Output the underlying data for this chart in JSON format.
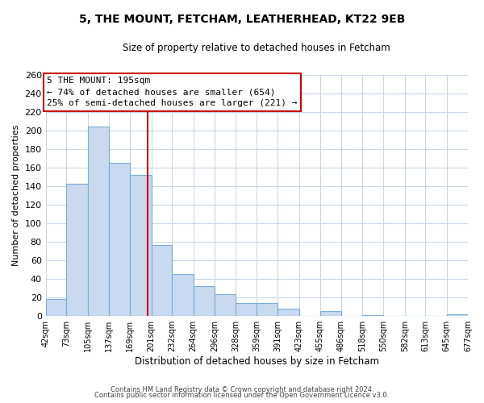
{
  "title": "5, THE MOUNT, FETCHAM, LEATHERHEAD, KT22 9EB",
  "subtitle": "Size of property relative to detached houses in Fetcham",
  "xlabel": "Distribution of detached houses by size in Fetcham",
  "ylabel": "Number of detached properties",
  "bar_color": "#c8d9f0",
  "bar_edge_color": "#7aaddb",
  "background_color": "#ffffff",
  "grid_color": "#c8d8e8",
  "bin_edges": [
    42,
    73,
    105,
    137,
    169,
    201,
    232,
    264,
    296,
    328,
    359,
    391,
    423,
    455,
    486,
    518,
    550,
    582,
    613,
    645,
    677
  ],
  "bin_labels": [
    "42sqm",
    "73sqm",
    "105sqm",
    "137sqm",
    "169sqm",
    "201sqm",
    "232sqm",
    "264sqm",
    "296sqm",
    "328sqm",
    "359sqm",
    "391sqm",
    "423sqm",
    "455sqm",
    "486sqm",
    "518sqm",
    "550sqm",
    "582sqm",
    "613sqm",
    "645sqm",
    "677sqm"
  ],
  "counts": [
    18,
    143,
    204,
    165,
    152,
    77,
    45,
    32,
    24,
    14,
    14,
    8,
    0,
    5,
    0,
    1,
    0,
    0,
    0,
    2
  ],
  "reference_line_x": 195,
  "reference_line_color": "#cc0000",
  "annotation_line1": "5 THE MOUNT: 195sqm",
  "annotation_line2": "← 74% of detached houses are smaller (654)",
  "annotation_line3": "25% of semi-detached houses are larger (221) →",
  "annotation_box_color": "#ffffff",
  "annotation_box_edge_color": "#cc0000",
  "ylim": [
    0,
    260
  ],
  "yticks": [
    0,
    20,
    40,
    60,
    80,
    100,
    120,
    140,
    160,
    180,
    200,
    220,
    240,
    260
  ],
  "footer_line1": "Contains HM Land Registry data © Crown copyright and database right 2024.",
  "footer_line2": "Contains public sector information licensed under the Open Government Licence v3.0."
}
